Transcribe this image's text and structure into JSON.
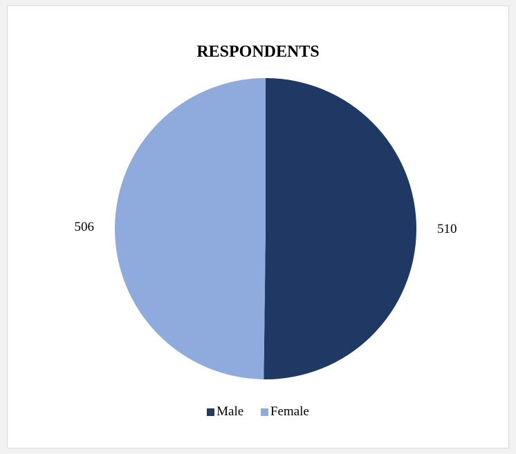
{
  "chart_data": {
    "type": "pie",
    "title": "RESPONDENTS",
    "categories": [
      "Male",
      "Female"
    ],
    "values": [
      510,
      506
    ],
    "data_labels": [
      "510",
      "506"
    ],
    "colors": [
      "#203864",
      "#8faadc"
    ],
    "legend_position": "bottom",
    "start_angle": "12 o'clock, clockwise"
  }
}
